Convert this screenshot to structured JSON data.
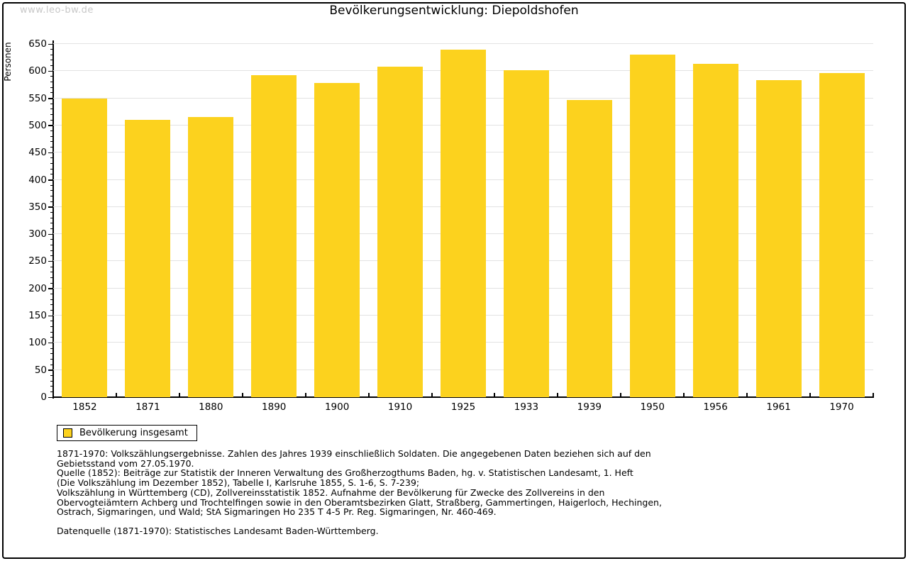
{
  "page": {
    "watermark": "www.leo-bw.de",
    "title": "Bevölkerungsentwicklung: Diepoldshofen"
  },
  "chart_data": {
    "type": "bar",
    "title": "Bevölkerungsentwicklung: Diepoldshofen",
    "xlabel": "",
    "ylabel": "Personen",
    "categories": [
      "1852",
      "1871",
      "1880",
      "1890",
      "1900",
      "1910",
      "1925",
      "1933",
      "1939",
      "1950",
      "1956",
      "1961",
      "1970"
    ],
    "series": [
      {
        "name": "Bevölkerung insgesamt",
        "values": [
          550,
          510,
          516,
          592,
          578,
          608,
          639,
          602,
          547,
          630,
          614,
          583,
          597
        ]
      }
    ],
    "ylim": [
      0,
      650
    ],
    "ytick_step": 50,
    "y_minor_tick_step": 10,
    "grid": true,
    "legend_position": "bottom-left",
    "bar_color": "#FCD21E"
  },
  "legend": {
    "label": "Bevölkerung insgesamt",
    "swatch_color": "#FCD21E"
  },
  "footnotes": {
    "lines": [
      "1871-1970: Volkszählungsergebnisse. Zahlen des Jahres 1939 einschließlich Soldaten. Die angegebenen Daten beziehen sich auf den",
      "Gebietsstand vom 27.05.1970.",
      "Quelle (1852): Beiträge zur Statistik der Inneren Verwaltung des Großherzogthums Baden, hg. v. Statistischen Landesamt, 1. Heft",
      "(Die Volkszählung im Dezember 1852), Tabelle I, Karlsruhe 1855, S. 1-6, S. 7-239;",
      "Volkszählung in Württemberg (CD), Zollvereinsstatistik 1852. Aufnahme der Bevölkerung für Zwecke des Zollvereins in den",
      "Obervogteiämtern Achberg und Trochtelfingen sowie in den Oberamtsbezirken Glatt, Straßberg, Gammertingen, Haigerloch, Hechingen,",
      "Ostrach, Sigmaringen, und Wald; StA Sigmaringen Ho 235 T 4-5 Pr. Reg. Sigmaringen, Nr. 460-469."
    ],
    "datasource": "Datenquelle (1871-1970): Statistisches Landesamt Baden-Württemberg."
  },
  "colors": {
    "bar": "#FCD21E",
    "gridline": "#e2e2e2",
    "axis": "#000000",
    "watermark": "#c8c8c8",
    "background": "#ffffff"
  }
}
